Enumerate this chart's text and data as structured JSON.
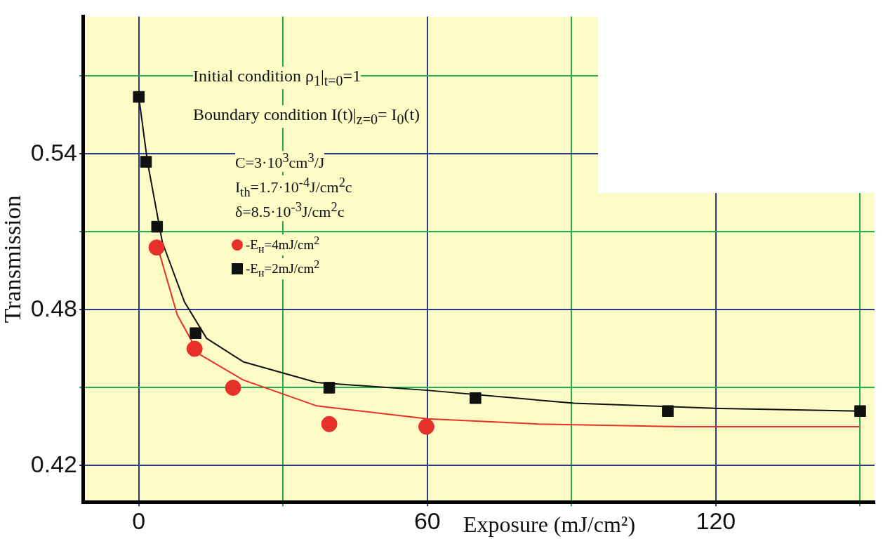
{
  "chart_data": {
    "type": "scatter",
    "xlabel": "Exposure (mJ/cm²)",
    "ylabel": "Transmission",
    "xlim": [
      -11.5,
      153
    ],
    "ylim": [
      0.406,
      0.593
    ],
    "xticks": [
      0,
      {
        "value": 30,
        "label": null
      },
      60,
      {
        "value": 90,
        "label": null
      },
      120,
      {
        "value": 150,
        "label": null
      }
    ],
    "yticks": [
      0.42,
      {
        "value": 0.45,
        "label": null
      },
      0.48,
      {
        "value": 0.51,
        "label": null
      },
      0.54,
      {
        "value": 0.57,
        "label": null
      }
    ],
    "grid": true,
    "legend": "left",
    "annotations": [
      "Initial condition      ρ$_{1}$|$_{t=0}$=1",
      "Boundary condition  I(t)|$_{z=0}$= I$_{0}$(t)",
      "C=3·10$^{3}$cm$^{3}$/J",
      "I$_{th}$=1.7·10$^{-4}$J/cm$^{2}$c",
      "δ=8.5·10$^{-3}$J/cm$^{2}$c"
    ],
    "series": [
      {
        "name": "-E$_{н}$=4mJ/cm$^{2}$",
        "color": "#e8302a",
        "marker": "circle",
        "x": [
          3.7,
          11.6,
          19.6,
          39.6,
          59.8
        ],
        "values": [
          0.504,
          0.465,
          0.45,
          0.436,
          0.435
        ]
      },
      {
        "name": "-E$_{н}$=2mJ/cm$^{2}$",
        "color": "#111111",
        "marker": "square",
        "x": [
          0,
          1.5,
          3.8,
          11.8,
          39.6,
          70,
          110,
          150
        ],
        "values": [
          0.562,
          0.537,
          0.512,
          0.471,
          0.45,
          0.446,
          0.441,
          0.441
        ]
      },
      {
        "type": "line",
        "color": "#e8302a",
        "marker": "none",
        "x": [
          4.1,
          8,
          12.5,
          21.7,
          37,
          60,
          83,
          113,
          150
        ],
        "values": [
          0.503,
          0.478,
          0.463,
          0.453,
          0.443,
          0.438,
          0.436,
          0.435,
          0.435
        ]
      },
      {
        "type": "line",
        "color": "#111111",
        "marker": "none",
        "x": [
          0,
          1.8,
          4.9,
          9.5,
          14.1,
          21.7,
          37,
          60,
          90.5,
          121,
          150
        ],
        "values": [
          0.562,
          0.537,
          0.506,
          0.483,
          0.469,
          0.46,
          0.452,
          0.449,
          0.444,
          0.442,
          0.441
        ]
      }
    ]
  }
}
